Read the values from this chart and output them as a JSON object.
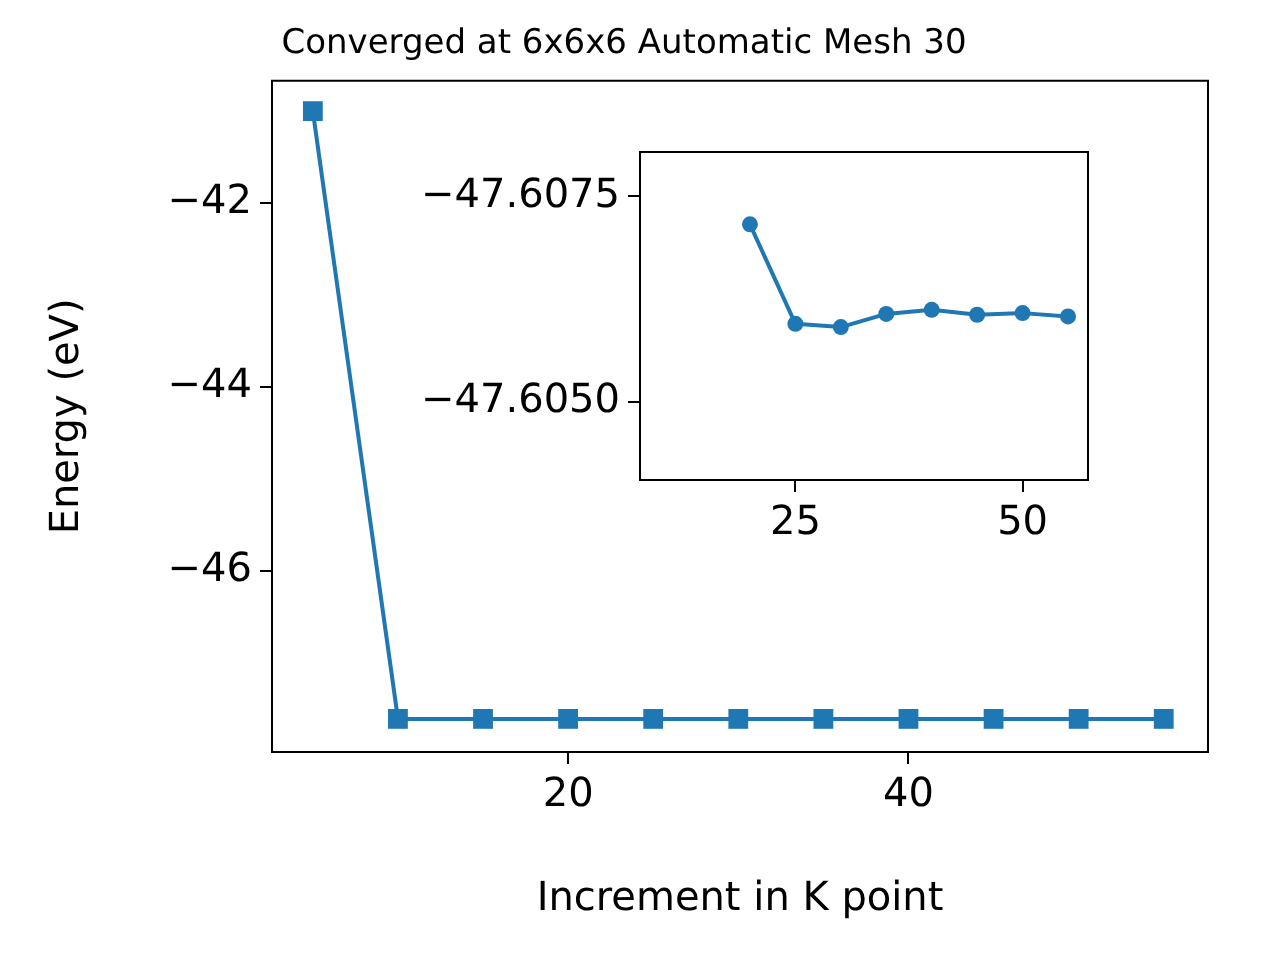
{
  "chart_data": [
    {
      "type": "line",
      "title": "Converged at 6x6x6 Automatic Mesh 30",
      "xlabel": "Increment in K point",
      "ylabel": "Energy (eV)",
      "x": [
        5,
        10,
        15,
        20,
        25,
        30,
        35,
        40,
        45,
        50,
        55
      ],
      "series": [
        {
          "color": "#1f77b4",
          "values": [
            -41.0,
            -47.61,
            -47.61,
            -47.61,
            -47.61,
            -47.61,
            -47.61,
            -47.61,
            -47.61,
            -47.61,
            -47.61
          ]
        }
      ],
      "xlim": [
        2.6,
        57.6
      ],
      "xticks": [
        20,
        40
      ],
      "ylim": [
        -47.97,
        -40.67
      ],
      "yticks": [
        {
          "value": -42,
          "label": "−42"
        },
        {
          "value": -44,
          "label": "−44"
        },
        {
          "value": -46,
          "label": "−46"
        }
      ],
      "marker": "square",
      "grid": false,
      "legend": false
    },
    {
      "type": "line",
      "x": [
        20,
        25,
        30,
        35,
        40,
        45,
        50,
        55
      ],
      "series": [
        {
          "color": "#1f77b4",
          "values": [
            -47.60716,
            -47.60595,
            -47.60591,
            -47.60607,
            -47.60612,
            -47.60606,
            -47.60608,
            -47.60604
          ]
        }
      ],
      "xlim": [
        7.9,
        57.2
      ],
      "xticks": [
        25,
        50
      ],
      "ylim": [
        -47.60405,
        -47.60804
      ],
      "yticks": [
        {
          "value": -47.6075,
          "label": "−47.6075"
        },
        {
          "value": -47.605,
          "label": "−47.6050"
        }
      ],
      "marker": "circle",
      "grid": false,
      "legend": false
    }
  ]
}
